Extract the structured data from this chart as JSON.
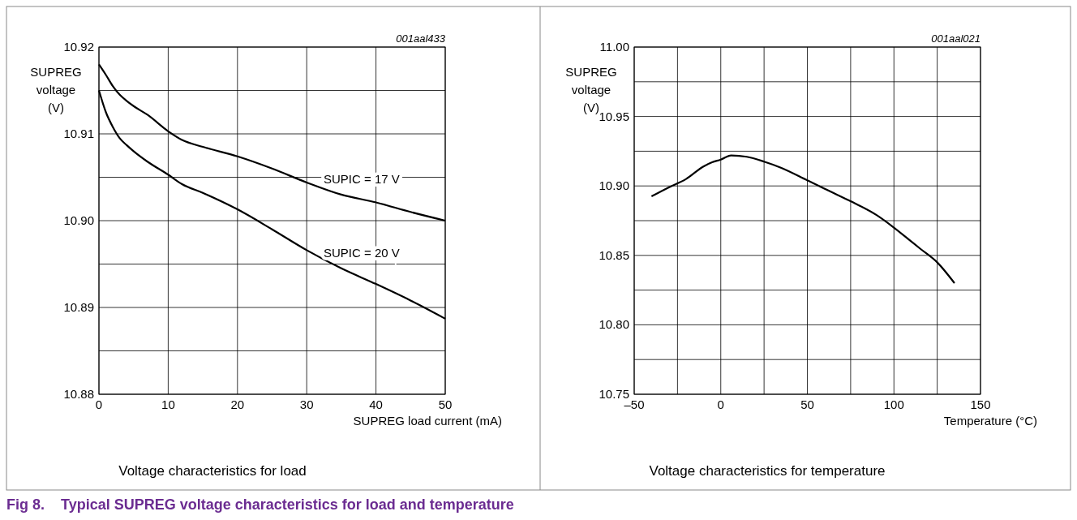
{
  "chart_data": [
    {
      "type": "line",
      "title": "Fig 8.    Typical SUPREG voltage characteristics for load and temperature",
      "subtitle": "Voltage characteristics for load",
      "annotations": [
        "001aal433"
      ],
      "xlabel": "SUPREG load current (mA)",
      "ylabel": "SUPREG voltage (V)",
      "xlim": [
        0,
        50
      ],
      "ylim": [
        10.88,
        10.92
      ],
      "xticks": [
        0,
        10,
        20,
        30,
        40,
        50
      ],
      "yticks": [
        {
          "value": 10.88,
          "label": "10.88"
        },
        {
          "value": 10.885,
          "label": null
        },
        {
          "value": 10.89,
          "label": "10.89"
        },
        {
          "value": 10.895,
          "label": null
        },
        {
          "value": 10.9,
          "label": "10.90"
        },
        {
          "value": 10.905,
          "label": null
        },
        {
          "value": 10.91,
          "label": "10.91"
        },
        {
          "value": 10.915,
          "label": null
        },
        {
          "value": 10.92,
          "label": "10.92"
        }
      ],
      "grid": true,
      "line_style": "solid",
      "series": [
        {
          "name": "SUPIC = 17 V",
          "color": "#000000",
          "x": [
            0,
            1,
            2,
            3,
            4,
            5,
            7,
            10,
            12,
            15,
            20,
            25,
            30,
            35,
            40,
            45,
            50
          ],
          "values": [
            10.918,
            10.9168,
            10.9155,
            10.9145,
            10.9138,
            10.9132,
            10.9122,
            10.9103,
            10.9093,
            10.9085,
            10.9074,
            10.906,
            10.9044,
            10.903,
            10.9021,
            10.901,
            10.9
          ]
        },
        {
          "name": "SUPIC = 20 V",
          "color": "#000000",
          "x": [
            0,
            1,
            2,
            3,
            4,
            5,
            7,
            10,
            12,
            15,
            20,
            25,
            30,
            35,
            40,
            45,
            50
          ],
          "values": [
            10.915,
            10.9125,
            10.9108,
            10.9095,
            10.9087,
            10.908,
            10.9068,
            10.9053,
            10.9042,
            10.9032,
            10.9013,
            10.899,
            10.8966,
            10.8945,
            10.8927,
            10.8908,
            10.8887
          ]
        }
      ]
    },
    {
      "type": "line",
      "subtitle": "Voltage characteristics for temperature",
      "annotations": [
        "001aal021"
      ],
      "xlabel": "Temperature (°C)",
      "ylabel": "SUPREG voltage (V)",
      "xlim": [
        -50,
        150
      ],
      "ylim": [
        10.75,
        11.0
      ],
      "xticks": [
        {
          "value": -50,
          "label": "–50"
        },
        {
          "value": -25,
          "label": null
        },
        0,
        {
          "value": 25,
          "label": null
        },
        50,
        {
          "value": 75,
          "label": null
        },
        100,
        {
          "value": 125,
          "label": null
        },
        150
      ],
      "yticks": [
        {
          "value": 10.75,
          "label": "10.75"
        },
        {
          "value": 10.775,
          "label": null
        },
        {
          "value": 10.8,
          "label": "10.80"
        },
        {
          "value": 10.825,
          "label": null
        },
        {
          "value": 10.85,
          "label": "10.85"
        },
        {
          "value": 10.875,
          "label": null
        },
        {
          "value": 10.9,
          "label": "10.90"
        },
        {
          "value": 10.925,
          "label": null
        },
        {
          "value": 10.95,
          "label": "10.95"
        },
        {
          "value": 10.975,
          "label": null
        },
        {
          "value": 11.0,
          "label": "11.00"
        }
      ],
      "grid": true,
      "line_style": "solid",
      "series": [
        {
          "color": "#000000",
          "x": [
            -40,
            -30,
            -20,
            -10,
            -5,
            0,
            6,
            15,
            25,
            35,
            50,
            65,
            75,
            90,
            100,
            110,
            115,
            125,
            135
          ],
          "values": [
            10.8925,
            10.899,
            10.905,
            10.914,
            10.917,
            10.919,
            10.922,
            10.921,
            10.9175,
            10.913,
            10.904,
            10.895,
            10.889,
            10.879,
            10.87,
            10.86,
            10.855,
            10.845,
            10.83
          ]
        }
      ]
    }
  ]
}
